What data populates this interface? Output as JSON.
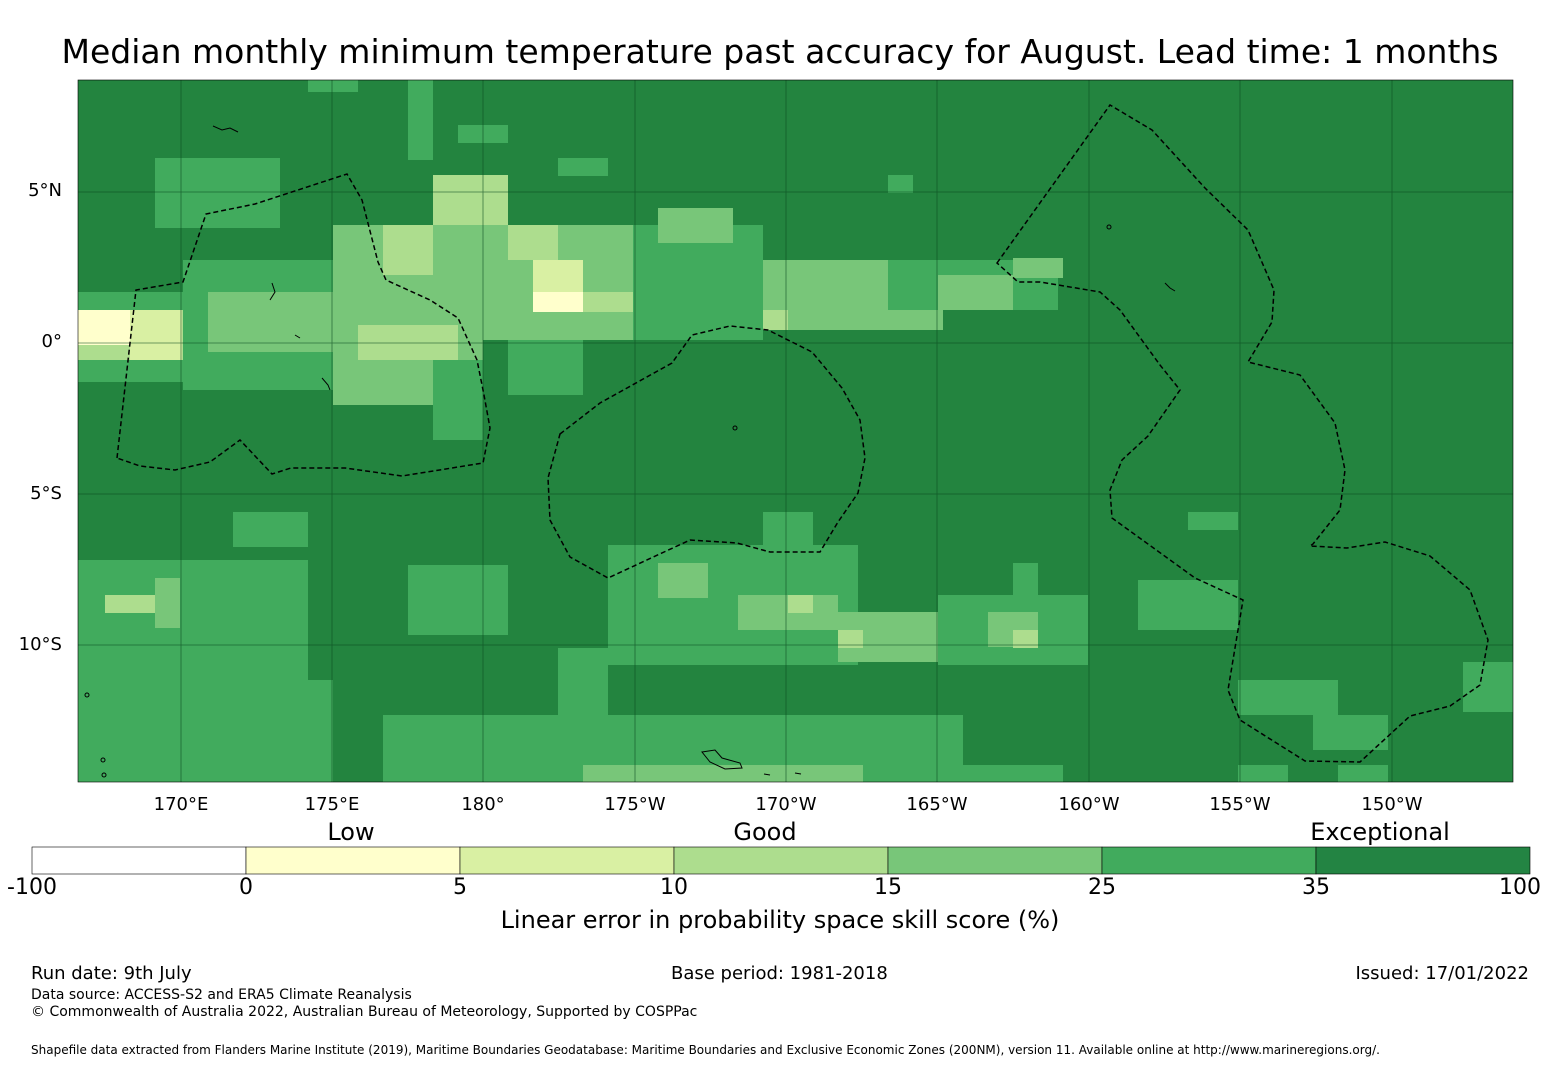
{
  "title": "Median monthly minimum temperature past accuracy for August. Lead time: 1 months",
  "map": {
    "lat_labels": [
      "5°N",
      "0°",
      "5°S",
      "10°S"
    ],
    "lon_labels": [
      "170°E",
      "175°E",
      "180°",
      "175°W",
      "170°W",
      "165°W",
      "160°W",
      "155°W",
      "150°W"
    ],
    "background_color": "#23843f",
    "grid": true,
    "boundaries": "dashed EEZ outlines",
    "land": "small island coastlines in black"
  },
  "legend": {
    "categories": [
      "Low",
      "Good",
      "Exceptional"
    ],
    "ticks": [
      "-100",
      "0",
      "5",
      "10",
      "15",
      "25",
      "35",
      "100"
    ],
    "colors": [
      "#ffffff",
      "#ffffcc",
      "#d9f0a3",
      "#addd8e",
      "#78c679",
      "#41ab5d",
      "#238443"
    ],
    "label": "Linear error in probability space skill score (%)"
  },
  "footer": {
    "run_date": "Run date: 9th July",
    "base_period": "Base period: 1981-2018",
    "issued": "Issued: 17/01/2022",
    "data_source": "Data source: ACCESS-S2 and ERA5 Climate Reanalysis",
    "copyright": "© Commonwealth of Australia 2022, Australian Bureau of Meteorology, Supported by COSPPac",
    "shapefile": "Shapefile data extracted from Flanders Marine Institute (2019), Maritime Boundaries Geodatabase: Maritime Boundaries and Exclusive Economic Zones (200NM), version 11. Available online at http://www.marineregions.org/."
  }
}
